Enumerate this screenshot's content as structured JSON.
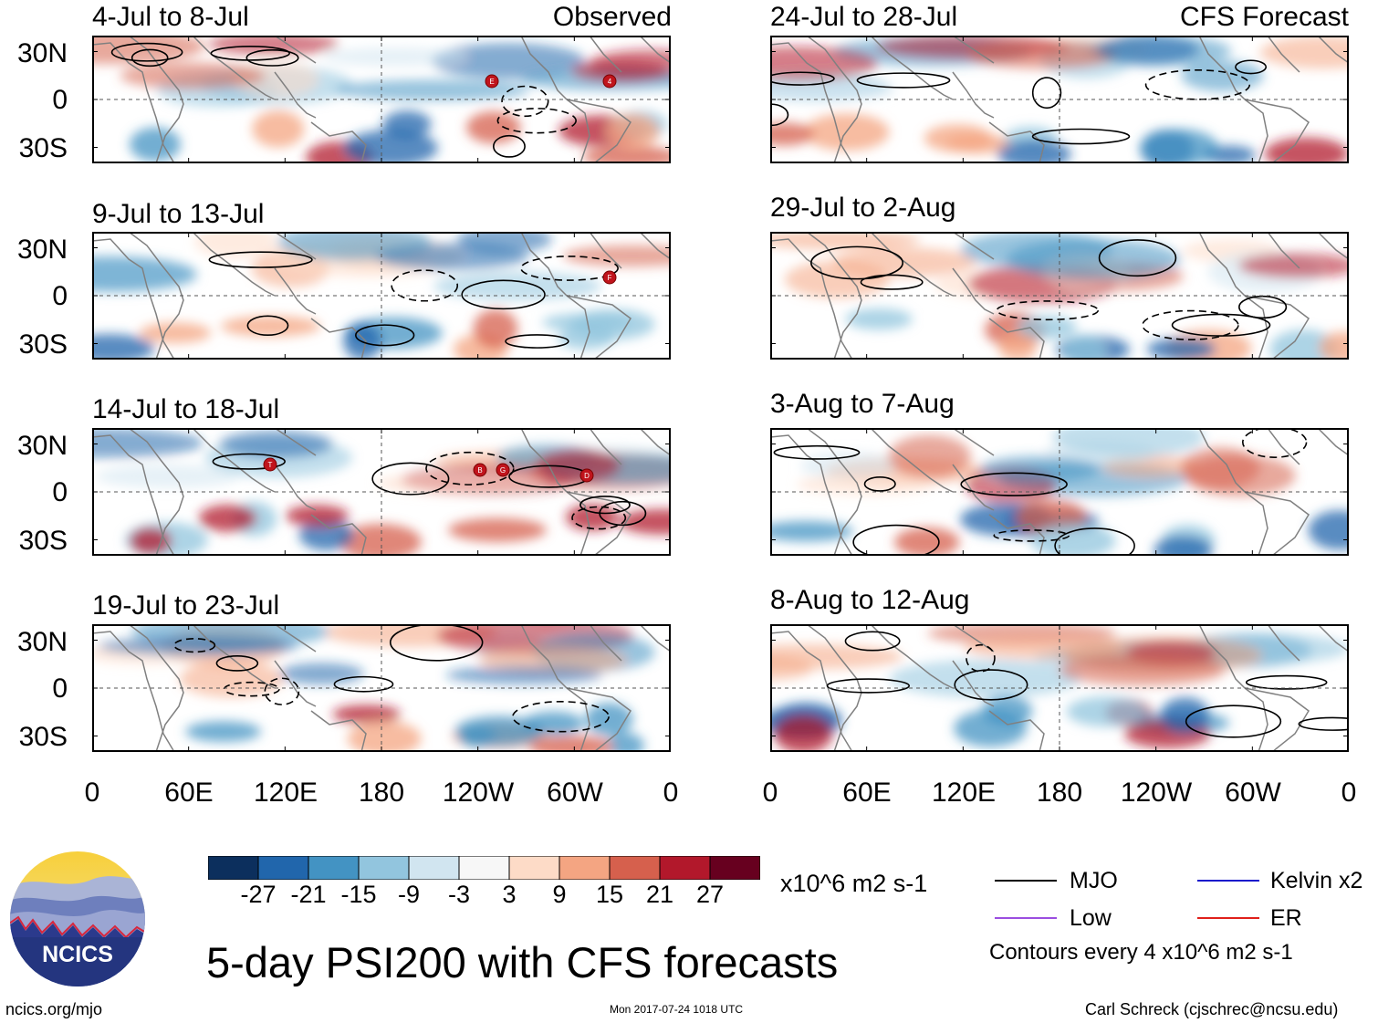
{
  "panels": [
    {
      "id": "p1",
      "title": "4-Jul to 8-Jul",
      "label": "Observed",
      "storms": [
        "E",
        "4"
      ]
    },
    {
      "id": "p2",
      "title": "9-Jul to 13-Jul",
      "label": "",
      "storms": [
        "F"
      ]
    },
    {
      "id": "p3",
      "title": "14-Jul to 18-Jul",
      "label": "",
      "storms": [
        "T",
        "B",
        "G",
        "D"
      ]
    },
    {
      "id": "p4",
      "title": "19-Jul to 23-Jul",
      "label": "",
      "storms": []
    },
    {
      "id": "p5",
      "title": "24-Jul to 28-Jul",
      "label": "CFS Forecast",
      "storms": []
    },
    {
      "id": "p6",
      "title": "29-Jul to 2-Aug",
      "label": "",
      "storms": []
    },
    {
      "id": "p7",
      "title": "3-Aug to 7-Aug",
      "label": "",
      "storms": []
    },
    {
      "id": "p8",
      "title": "8-Aug to 12-Aug",
      "label": "",
      "storms": []
    }
  ],
  "lat_labels": [
    "30N",
    "0",
    "30S"
  ],
  "lon_labels": [
    "0",
    "60E",
    "120E",
    "180",
    "120W",
    "60W",
    "0"
  ],
  "colorbar": {
    "colors": [
      "#0c2f5d",
      "#2166ac",
      "#4393c3",
      "#92c5de",
      "#d1e5f0",
      "#f7f7f7",
      "#fddbc7",
      "#f4a582",
      "#d6604d",
      "#b2182b",
      "#67001f"
    ],
    "ticks": [
      "-27",
      "-21",
      "-15",
      "-9",
      "-3",
      "3",
      "9",
      "15",
      "21",
      "27"
    ],
    "units": "x10^6 m2 s-1"
  },
  "legend": {
    "items": [
      {
        "name": "MJO",
        "color": "#000000"
      },
      {
        "name": "Kelvin x2",
        "color": "#1a1acc"
      },
      {
        "name": "Low",
        "color": "#9b4ee0"
      },
      {
        "name": "ER",
        "color": "#e0201a"
      }
    ],
    "note": "Contours every 4 x10^6 m2 s-1"
  },
  "main_title": "5-day PSI200 with CFS forecasts",
  "logo_text": "NCICS",
  "footer": {
    "url": "ncics.org/mjo",
    "timestamp": "Mon 2017-07-24 1018 UTC",
    "author": "Carl Schreck (cjschrec@ncsu.edu)"
  }
}
